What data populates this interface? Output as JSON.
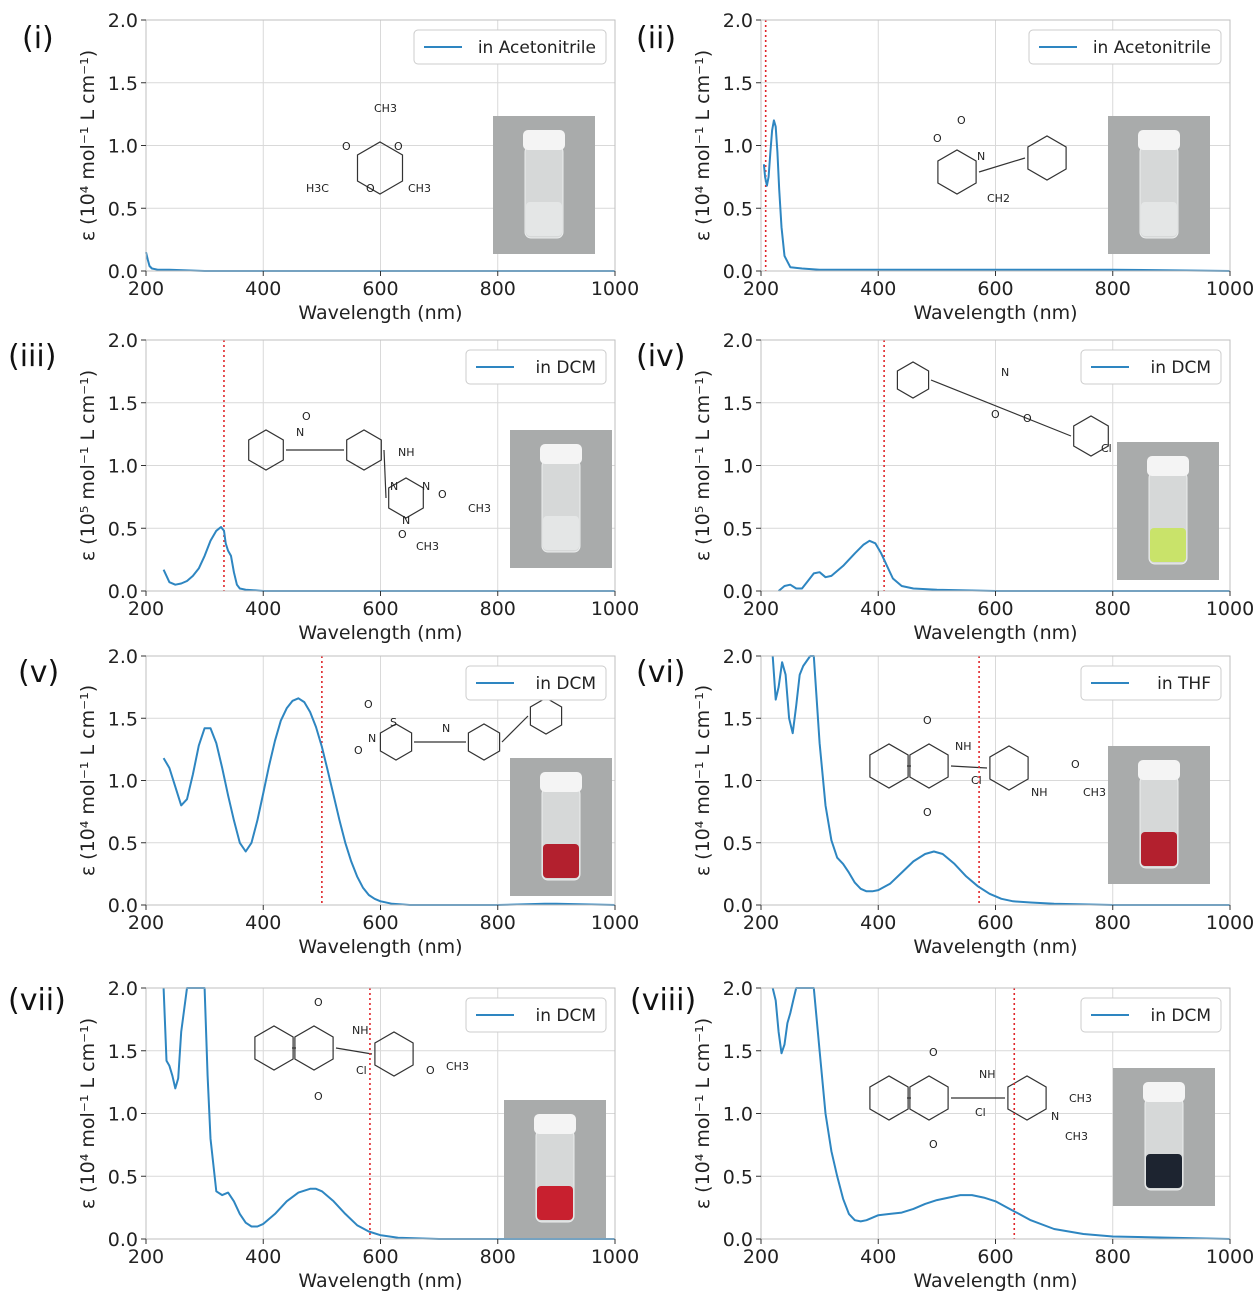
{
  "chart_data": [
    {
      "type": "line",
      "panel_label": "(i)",
      "xlabel": "Wavelength (nm)",
      "ylabel": "ε (10⁴ mol⁻¹ L cm⁻¹)",
      "xlim": [
        200,
        1000
      ],
      "ylim": [
        0,
        2.0
      ],
      "xticks": [
        200,
        400,
        600,
        800,
        1000
      ],
      "yticks": [
        "0.0",
        "0.5",
        "1.0",
        "1.5",
        "2.0"
      ],
      "grid": true,
      "legend_placement": "top-right",
      "series": [
        {
          "name": "in Acetonitrile",
          "color": "#2e86c1",
          "x": [
            200,
            203,
            206,
            210,
            220,
            240,
            300,
            400,
            600,
            800,
            1000
          ],
          "y": [
            0.15,
            0.09,
            0.04,
            0.02,
            0.01,
            0.01,
            0.0,
            0.0,
            0.0,
            0.0,
            0.0
          ]
        }
      ],
      "marker_line": null,
      "structure_labels": [
        "CH3",
        "O",
        "O",
        "O",
        "H3C",
        "CH3"
      ],
      "vial_color": "#e4e6e6"
    },
    {
      "type": "line",
      "panel_label": "(ii)",
      "xlabel": "Wavelength (nm)",
      "ylabel": "ε (10⁴ mol⁻¹ L cm⁻¹)",
      "xlim": [
        200,
        1000
      ],
      "ylim": [
        0,
        2.0
      ],
      "xticks": [
        200,
        400,
        600,
        800,
        1000
      ],
      "yticks": [
        "0.0",
        "0.5",
        "1.0",
        "1.5",
        "2.0"
      ],
      "grid": true,
      "legend_placement": "top-right",
      "series": [
        {
          "name": "in Acetonitrile",
          "color": "#2e86c1",
          "x": [
            205,
            207,
            210,
            213,
            216,
            219,
            222,
            225,
            228,
            231,
            235,
            240,
            250,
            270,
            300,
            400,
            600,
            800,
            1000
          ],
          "y": [
            0.85,
            0.75,
            0.68,
            0.75,
            0.95,
            1.12,
            1.2,
            1.15,
            0.95,
            0.65,
            0.35,
            0.12,
            0.03,
            0.02,
            0.01,
            0.01,
            0.01,
            0.01,
            0.0
          ]
        }
      ],
      "marker_line": 208,
      "structure_labels": [
        "O",
        "O",
        "N",
        "CH2"
      ],
      "vial_color": "#e4e6e6"
    },
    {
      "type": "line",
      "panel_label": "(iii)",
      "xlabel": "Wavelength (nm)",
      "ylabel": "ε (10⁵ mol⁻¹ L cm⁻¹)",
      "xlim": [
        200,
        1000
      ],
      "ylim": [
        0,
        2.0
      ],
      "xticks": [
        200,
        400,
        600,
        800,
        1000
      ],
      "yticks": [
        "0.0",
        "0.5",
        "1.0",
        "1.5",
        "2.0"
      ],
      "grid": true,
      "legend_placement": "top-right",
      "series": [
        {
          "name": "in DCM",
          "color": "#2e86c1",
          "x": [
            230,
            235,
            240,
            250,
            260,
            270,
            280,
            290,
            300,
            310,
            320,
            328,
            333,
            336,
            340,
            345,
            350,
            355,
            360,
            370,
            400,
            600,
            800,
            1000
          ],
          "y": [
            0.17,
            0.12,
            0.07,
            0.05,
            0.06,
            0.08,
            0.12,
            0.18,
            0.28,
            0.4,
            0.48,
            0.51,
            0.48,
            0.38,
            0.32,
            0.28,
            0.15,
            0.05,
            0.02,
            0.01,
            0.0,
            0.0,
            0.0,
            0.0
          ]
        }
      ],
      "marker_line": 333,
      "structure_labels": [
        "N",
        "O",
        "NH",
        "N",
        "N",
        "N",
        "O",
        "CH3",
        "O",
        "CH3"
      ],
      "vial_color": "#e4e6e6"
    },
    {
      "type": "line",
      "panel_label": "(iv)",
      "xlabel": "Wavelength (nm)",
      "ylabel": "ε (10⁵ mol⁻¹ L cm⁻¹)",
      "xlim": [
        200,
        1000
      ],
      "ylim": [
        0,
        2.0
      ],
      "xticks": [
        200,
        400,
        600,
        800,
        1000
      ],
      "yticks": [
        "0.0",
        "0.5",
        "1.0",
        "1.5",
        "2.0"
      ],
      "grid": true,
      "legend_placement": "top-right",
      "series": [
        {
          "name": "in DCM",
          "color": "#2e86c1",
          "x": [
            230,
            240,
            250,
            260,
            270,
            280,
            290,
            300,
            310,
            320,
            340,
            360,
            375,
            385,
            395,
            405,
            415,
            425,
            440,
            460,
            500,
            600,
            800,
            1000
          ],
          "y": [
            0.0,
            0.04,
            0.05,
            0.02,
            0.02,
            0.08,
            0.14,
            0.15,
            0.11,
            0.12,
            0.2,
            0.3,
            0.37,
            0.4,
            0.38,
            0.3,
            0.2,
            0.1,
            0.04,
            0.02,
            0.01,
            0.0,
            0.0,
            0.0
          ]
        }
      ],
      "marker_line": 410,
      "structure_labels": [
        "N",
        "O",
        "O",
        "Cl"
      ],
      "vial_color": "#c9e36a"
    },
    {
      "type": "line",
      "panel_label": "(v)",
      "xlabel": "Wavelength (nm)",
      "ylabel": "ε (10⁴ mol⁻¹ L cm⁻¹)",
      "xlim": [
        200,
        1000
      ],
      "ylim": [
        0,
        2.0
      ],
      "xticks": [
        200,
        400,
        600,
        800,
        1000
      ],
      "yticks": [
        "0.0",
        "0.5",
        "1.0",
        "1.5",
        "2.0"
      ],
      "grid": true,
      "legend_placement": "top-right",
      "series": [
        {
          "name": "in DCM",
          "color": "#2e86c1",
          "x": [
            230,
            240,
            250,
            260,
            270,
            280,
            290,
            300,
            310,
            320,
            330,
            340,
            350,
            360,
            370,
            380,
            390,
            400,
            410,
            420,
            430,
            440,
            450,
            460,
            470,
            480,
            490,
            500,
            510,
            520,
            530,
            540,
            550,
            560,
            570,
            580,
            590,
            600,
            620,
            650,
            700,
            800,
            880,
            900,
            1000
          ],
          "y": [
            1.18,
            1.1,
            0.95,
            0.8,
            0.85,
            1.05,
            1.28,
            1.42,
            1.42,
            1.3,
            1.1,
            0.88,
            0.68,
            0.5,
            0.43,
            0.5,
            0.68,
            0.9,
            1.12,
            1.32,
            1.48,
            1.58,
            1.64,
            1.66,
            1.63,
            1.55,
            1.43,
            1.27,
            1.08,
            0.88,
            0.68,
            0.5,
            0.35,
            0.23,
            0.14,
            0.08,
            0.05,
            0.03,
            0.01,
            0.0,
            0.0,
            0.0,
            0.01,
            0.01,
            0.0
          ]
        }
      ],
      "marker_line": 500,
      "structure_labels": [
        "O",
        "N",
        "O",
        "S",
        "N",
        "N",
        "O"
      ],
      "vial_color": "#b3202e"
    },
    {
      "type": "line",
      "panel_label": "(vi)",
      "xlabel": "Wavelength (nm)",
      "ylabel": "ε (10⁴ mol⁻¹ L cm⁻¹)",
      "xlim": [
        200,
        1000
      ],
      "ylim": [
        0,
        2.0
      ],
      "xticks": [
        200,
        400,
        600,
        800,
        1000
      ],
      "yticks": [
        "0.0",
        "0.5",
        "1.0",
        "1.5",
        "2.0"
      ],
      "grid": true,
      "legend_placement": "top-right",
      "series": [
        {
          "name": "in THF",
          "color": "#2e86c1",
          "x": [
            220,
            225,
            230,
            236,
            242,
            248,
            254,
            260,
            266,
            272,
            278,
            284,
            290,
            300,
            310,
            320,
            330,
            340,
            350,
            360,
            370,
            380,
            390,
            400,
            420,
            440,
            460,
            480,
            495,
            510,
            530,
            550,
            570,
            590,
            610,
            630,
            660,
            700,
            800,
            1000
          ],
          "y": [
            2.0,
            1.65,
            1.75,
            1.95,
            1.85,
            1.5,
            1.38,
            1.6,
            1.85,
            1.92,
            1.96,
            2.0,
            2.0,
            1.3,
            0.8,
            0.52,
            0.38,
            0.33,
            0.26,
            0.18,
            0.13,
            0.11,
            0.11,
            0.12,
            0.17,
            0.26,
            0.35,
            0.41,
            0.43,
            0.41,
            0.33,
            0.23,
            0.15,
            0.09,
            0.05,
            0.03,
            0.02,
            0.01,
            0.0,
            0.0
          ]
        }
      ],
      "marker_line": 572,
      "structure_labels": [
        "O",
        "NH",
        "Cl",
        "O",
        "NH",
        "O",
        "CH3"
      ],
      "vial_color": "#b3202e"
    },
    {
      "type": "line",
      "panel_label": "(vii)",
      "xlabel": "Wavelength (nm)",
      "ylabel": "ε (10⁴ mol⁻¹ L cm⁻¹)",
      "xlim": [
        200,
        1000
      ],
      "ylim": [
        0,
        2.0
      ],
      "xticks": [
        200,
        400,
        600,
        800,
        1000
      ],
      "yticks": [
        "0.0",
        "0.5",
        "1.0",
        "1.5",
        "2.0"
      ],
      "grid": true,
      "legend_placement": "top-right",
      "series": [
        {
          "name": "in DCM",
          "color": "#2e86c1",
          "x": [
            230,
            235,
            240,
            245,
            250,
            255,
            260,
            270,
            280,
            290,
            300,
            305,
            310,
            320,
            330,
            340,
            350,
            360,
            370,
            380,
            390,
            400,
            420,
            440,
            460,
            480,
            490,
            500,
            520,
            540,
            560,
            580,
            600,
            630,
            700,
            800,
            1000
          ],
          "y": [
            2.0,
            1.42,
            1.38,
            1.3,
            1.2,
            1.28,
            1.65,
            2.0,
            2.0,
            2.0,
            2.0,
            1.3,
            0.8,
            0.38,
            0.35,
            0.37,
            0.3,
            0.2,
            0.13,
            0.1,
            0.1,
            0.12,
            0.2,
            0.3,
            0.37,
            0.4,
            0.4,
            0.38,
            0.3,
            0.2,
            0.11,
            0.06,
            0.03,
            0.01,
            0.0,
            0.0,
            0.0
          ]
        }
      ],
      "marker_line": 582,
      "structure_labels": [
        "O",
        "NH",
        "Cl",
        "O",
        "O",
        "CH3"
      ],
      "vial_color": "#c8202f"
    },
    {
      "type": "line",
      "panel_label": "(viii)",
      "xlabel": "Wavelength (nm)",
      "ylabel": "ε (10⁴ mol⁻¹ L cm⁻¹)",
      "xlim": [
        200,
        1000
      ],
      "ylim": [
        0,
        2.0
      ],
      "xticks": [
        200,
        400,
        600,
        800,
        1000
      ],
      "yticks": [
        "0.0",
        "0.5",
        "1.0",
        "1.5",
        "2.0"
      ],
      "grid": true,
      "legend_placement": "top-right",
      "series": [
        {
          "name": "in DCM",
          "color": "#2e86c1",
          "x": [
            220,
            225,
            230,
            235,
            240,
            245,
            250,
            255,
            260,
            270,
            280,
            290,
            300,
            310,
            320,
            330,
            340,
            350,
            360,
            370,
            380,
            400,
            420,
            440,
            460,
            480,
            500,
            520,
            540,
            560,
            580,
            600,
            620,
            640,
            660,
            700,
            750,
            800,
            900,
            1000
          ],
          "y": [
            2.0,
            1.9,
            1.65,
            1.48,
            1.55,
            1.72,
            1.8,
            1.9,
            2.0,
            2.0,
            2.0,
            2.0,
            1.5,
            1.0,
            0.7,
            0.5,
            0.32,
            0.2,
            0.15,
            0.14,
            0.15,
            0.19,
            0.2,
            0.21,
            0.24,
            0.28,
            0.31,
            0.33,
            0.35,
            0.35,
            0.33,
            0.3,
            0.25,
            0.2,
            0.15,
            0.08,
            0.04,
            0.02,
            0.01,
            0.0
          ]
        }
      ],
      "marker_line": 632,
      "structure_labels": [
        "O",
        "NH",
        "Cl",
        "O",
        "N",
        "CH3",
        "CH3"
      ],
      "vial_color": "#1d2430"
    }
  ]
}
